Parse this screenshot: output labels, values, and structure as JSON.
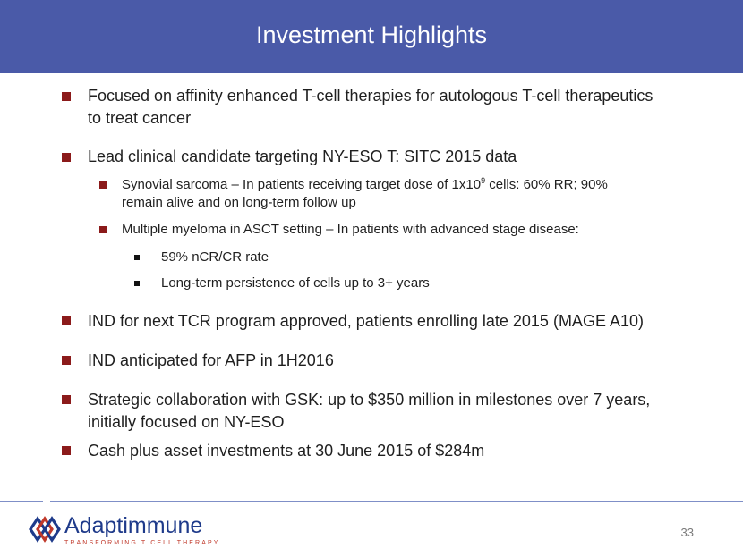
{
  "slide": {
    "title": "Investment Highlights",
    "page_number": "33"
  },
  "bullets": {
    "b1_line1": "Focused on affinity enhanced T-cell therapies for autologous T-cell therapeutics",
    "b1_line2": "to treat cancer",
    "b2": "Lead clinical candidate targeting NY-ESO T: SITC 2015 data",
    "b2a_line1_pre": "Synovial sarcoma – In patients receiving target dose of 1x10",
    "b2a_line1_sup": "9",
    "b2a_line1_post": " cells:  60% RR; 90%",
    "b2a_line2": "remain alive and on long-term follow up",
    "b2b": "Multiple myeloma in ASCT setting – In patients with advanced stage disease:",
    "b2b_i": "59% nCR/CR rate",
    "b2b_ii": "Long-term persistence  of cells up to 3+ years",
    "b3": "IND for next TCR program approved, patients enrolling late 2015 (MAGE A10)",
    "b4": "IND anticipated for AFP in 1H2016",
    "b5_line1": "Strategic collaboration with GSK: up to $350 million in milestones over 7 years,",
    "b5_line2": "initially focused on NY-ESO",
    "b6": "Cash plus asset investments at 30 June 2015 of $284m"
  },
  "logo": {
    "name": "Adaptimmune",
    "tagline": "TRANSFORMING T CELL THERAPY"
  },
  "colors": {
    "header": "#4a5aa8",
    "bullet": "#8b1a1a",
    "logo_blue": "#1e3a8a",
    "logo_red": "#c0392b"
  }
}
